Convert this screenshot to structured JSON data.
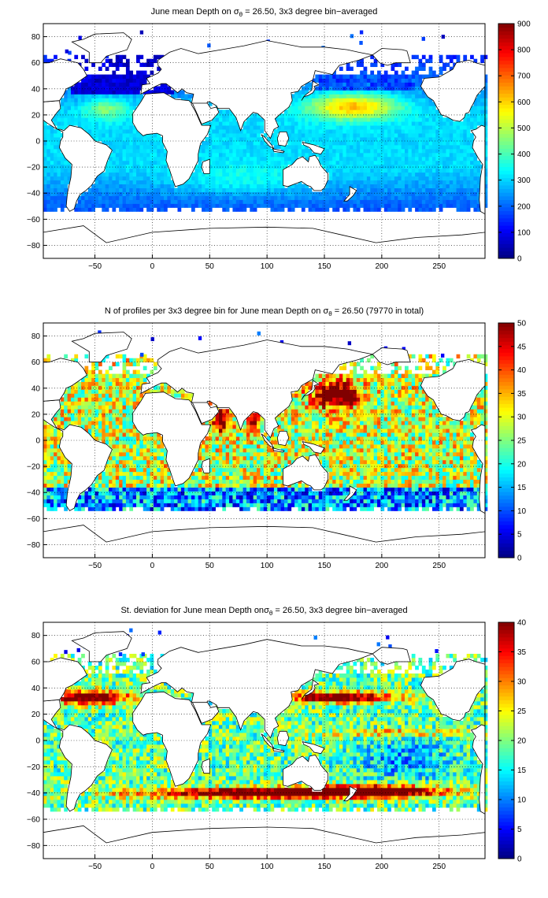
{
  "chart_data": [
    {
      "type": "heatmap",
      "title_pre": "June mean Depth on ",
      "title_sym": "σ",
      "title_sub": "θ",
      "title_post": " = 26.50, 3x3 degree bin−averaged",
      "xlim": [
        -95,
        290
      ],
      "ylim": [
        -90,
        90
      ],
      "xticks": [
        -50,
        0,
        50,
        100,
        150,
        200,
        250
      ],
      "yticks": [
        -80,
        -60,
        -40,
        -20,
        0,
        20,
        40,
        60,
        80
      ],
      "grid": true,
      "colormap": "jet",
      "clim": [
        0,
        900
      ],
      "colorbar_ticks": [
        0,
        100,
        200,
        300,
        400,
        500,
        600,
        700,
        800,
        900
      ],
      "colorbar_position": "right",
      "variable": "mean depth",
      "field": "depth"
    },
    {
      "type": "heatmap",
      "title_pre": "N of profiles per 3x3 degree bin for June mean Depth on ",
      "title_sym": "σ",
      "title_sub": "θ",
      "title_post": " = 26.50 (79770 in total)",
      "xlim": [
        -95,
        290
      ],
      "ylim": [
        -90,
        90
      ],
      "xticks": [
        -50,
        0,
        50,
        100,
        150,
        200,
        250
      ],
      "yticks": [
        -80,
        -60,
        -40,
        -20,
        0,
        20,
        40,
        60,
        80
      ],
      "grid": true,
      "colormap": "jet",
      "clim": [
        0,
        50
      ],
      "colorbar_ticks": [
        0,
        5,
        10,
        15,
        20,
        25,
        30,
        35,
        40,
        45,
        50
      ],
      "colorbar_position": "right",
      "total_profiles": 79770,
      "field": "count"
    },
    {
      "type": "heatmap",
      "title_pre": "St. deviation for June mean Depth on",
      "title_sym": "σ",
      "title_sub": "θ",
      "title_post": " = 26.50, 3x3 degree bin−averaged",
      "xlim": [
        -95,
        290
      ],
      "ylim": [
        -90,
        90
      ],
      "xticks": [
        -50,
        0,
        50,
        100,
        150,
        200,
        250
      ],
      "yticks": [
        -80,
        -60,
        -40,
        -20,
        0,
        20,
        40,
        60,
        80
      ],
      "grid": true,
      "colormap": "jet",
      "clim": [
        0,
        40
      ],
      "colorbar_ticks": [
        0,
        5,
        10,
        15,
        20,
        25,
        30,
        35,
        40
      ],
      "colorbar_position": "right",
      "field": "std"
    }
  ]
}
